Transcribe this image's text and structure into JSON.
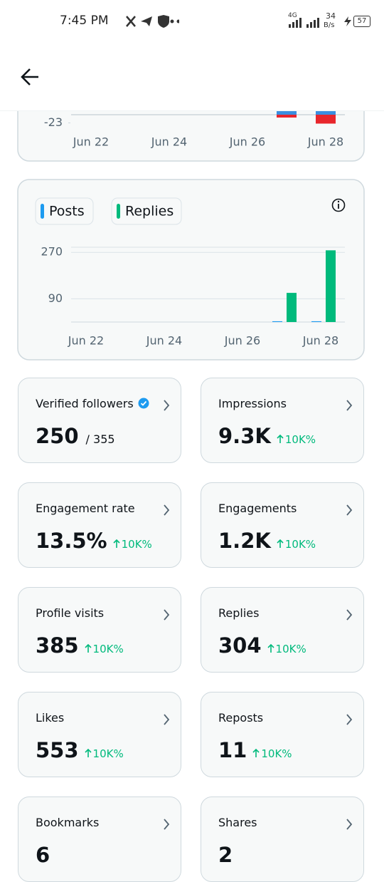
{
  "status_bar": {
    "time": "7:45 PM",
    "network": "4G",
    "speed": "34",
    "speed_unit": "B/s",
    "battery": "57"
  },
  "top_chart": {
    "type": "bar",
    "categories": [
      "Jun 22",
      null,
      "Jun 24",
      null,
      "Jun 26",
      null,
      "Jun 28"
    ],
    "series": [
      {
        "color": "#3b8fe0",
        "values": [
          0,
          0,
          0,
          0,
          0,
          12,
          12
        ]
      },
      {
        "color": "#e8262c",
        "values": [
          0,
          0,
          0,
          0,
          0,
          -8,
          -25
        ]
      }
    ],
    "ylim": [
      -30,
      10
    ],
    "yticks": [
      -23
    ]
  },
  "activity_chart": {
    "type": "bar",
    "categories": [
      "Jun 22",
      null,
      "Jun 24",
      null,
      "Jun 26",
      null,
      "Jun 28"
    ],
    "series": [
      {
        "name": "Posts",
        "color": "#1d9bf0",
        "values": [
          0,
          0,
          0,
          0,
          0,
          3,
          3
        ]
      },
      {
        "name": "Replies",
        "color": "#00ba7c",
        "values": [
          0,
          0,
          0,
          0,
          0,
          113,
          278
        ]
      }
    ],
    "ylim": [
      0,
      290
    ],
    "yticks": [
      90,
      270
    ],
    "grid": true
  },
  "cards": [
    {
      "title": "Verified followers",
      "value": "250",
      "total": "/ 355"
    },
    {
      "title": "Impressions",
      "value": "9.3K",
      "change": "10K%"
    },
    {
      "title": "Engagement rate",
      "value": "13.5%",
      "change": "10K%"
    },
    {
      "title": "Engagements",
      "value": "1.2K",
      "change": "10K%"
    },
    {
      "title": "Profile visits",
      "value": "385",
      "change": "10K%"
    },
    {
      "title": "Replies",
      "value": "304",
      "change": "10K%"
    },
    {
      "title": "Likes",
      "value": "553",
      "change": "10K%"
    },
    {
      "title": "Reposts",
      "value": "11",
      "change": "10K%"
    },
    {
      "title": "Bookmarks",
      "value": "6"
    },
    {
      "title": "Shares",
      "value": "2"
    }
  ]
}
